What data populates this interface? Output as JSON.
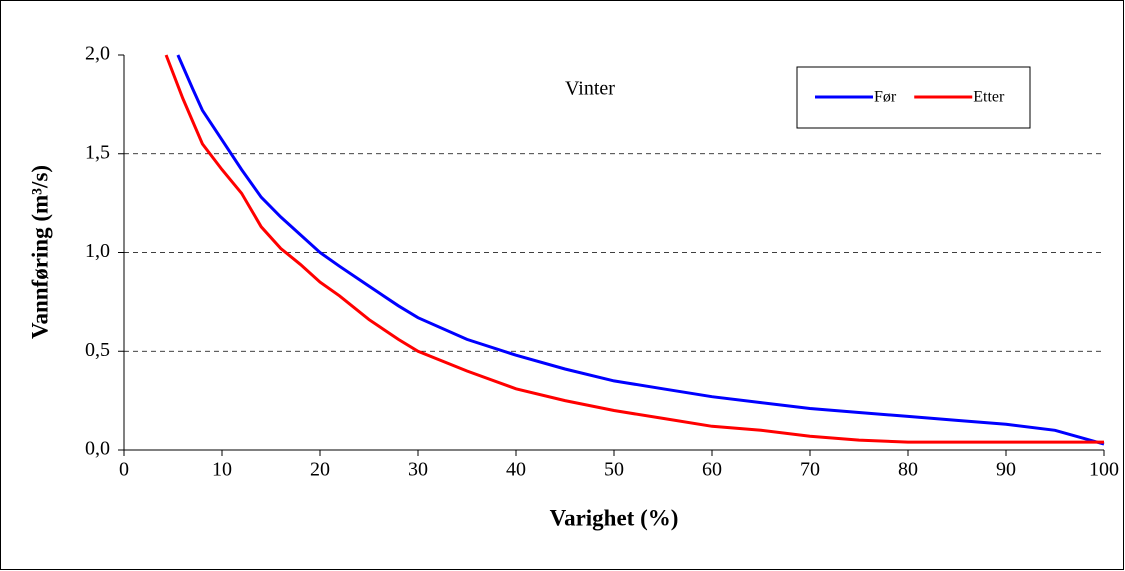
{
  "chart_data": {
    "type": "line",
    "annotation": "Vinter",
    "xlabel": "Varighet (%)",
    "ylabel": "Vannføring (m³/s)",
    "xlim": [
      0,
      100
    ],
    "ylim": [
      0,
      2
    ],
    "xticks": [
      0,
      10,
      20,
      30,
      40,
      50,
      60,
      70,
      80,
      90,
      100
    ],
    "yticks": [
      {
        "value": 0,
        "label": "0,0"
      },
      {
        "value": 0.5,
        "label": "0,5"
      },
      {
        "value": 1,
        "label": "1,0"
      },
      {
        "value": 1.5,
        "label": "1,5"
      },
      {
        "value": 2,
        "label": "2,0"
      }
    ],
    "grid": true,
    "legend": "upper right",
    "series": [
      {
        "name": "Før",
        "color": "#0000ff",
        "x": [
          5.5,
          7,
          8,
          10,
          12,
          14,
          16,
          18,
          20,
          22,
          25,
          28,
          30,
          35,
          40,
          45,
          50,
          55,
          60,
          65,
          70,
          75,
          80,
          85,
          90,
          95,
          100
        ],
        "values": [
          2.0,
          1.83,
          1.72,
          1.57,
          1.42,
          1.28,
          1.18,
          1.09,
          1.0,
          0.93,
          0.83,
          0.73,
          0.67,
          0.56,
          0.48,
          0.41,
          0.35,
          0.31,
          0.27,
          0.24,
          0.21,
          0.19,
          0.17,
          0.15,
          0.13,
          0.1,
          0.03
        ]
      },
      {
        "name": "Etter",
        "color": "#ff0000",
        "x": [
          4.3,
          6,
          8,
          10,
          12,
          14,
          16,
          18,
          20,
          22,
          25,
          28,
          30,
          35,
          40,
          45,
          50,
          55,
          60,
          65,
          70,
          75,
          80,
          90,
          100
        ],
        "values": [
          2.0,
          1.78,
          1.55,
          1.42,
          1.3,
          1.13,
          1.02,
          0.94,
          0.85,
          0.78,
          0.66,
          0.56,
          0.5,
          0.4,
          0.31,
          0.25,
          0.2,
          0.16,
          0.12,
          0.1,
          0.07,
          0.05,
          0.04,
          0.04,
          0.04
        ]
      }
    ]
  }
}
